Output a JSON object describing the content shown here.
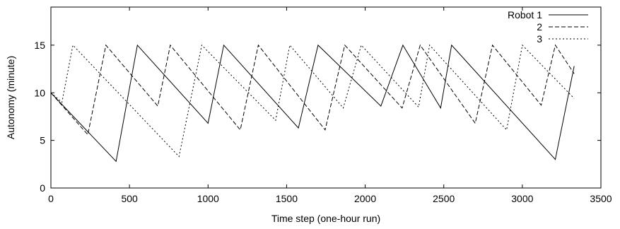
{
  "chart_data": {
    "type": "line",
    "title": "",
    "xlabel": "Time step (one-hour run)",
    "ylabel": "Autonomy (minute)",
    "xlim": [
      0,
      3500
    ],
    "ylim": [
      0,
      19
    ],
    "xticks": [
      0,
      500,
      1000,
      1500,
      2000,
      2500,
      3000,
      3500
    ],
    "yticks": [
      0,
      5,
      10,
      15
    ],
    "grid": false,
    "legend_position": "top-right",
    "series": [
      {
        "name": "Robot 1",
        "style": "solid",
        "x": [
          0,
          415,
          550,
          1000,
          1100,
          1575,
          1700,
          2100,
          2240,
          2480,
          2550,
          3210,
          3330
        ],
        "y": [
          10,
          2.8,
          15,
          6.8,
          15,
          6.3,
          15,
          8.6,
          15,
          8.4,
          15,
          3.0,
          12.8
        ]
      },
      {
        "name": "2",
        "style": "dashed",
        "x": [
          0,
          235,
          350,
          680,
          760,
          1205,
          1320,
          1745,
          1870,
          2235,
          2350,
          2700,
          2810,
          3120,
          3210,
          3330
        ],
        "y": [
          10,
          5.6,
          15,
          8.6,
          15,
          6.1,
          15,
          6.1,
          15,
          8.4,
          15,
          6.8,
          15,
          8.7,
          15,
          12.0
        ]
      },
      {
        "name": "3",
        "style": "dotted",
        "x": [
          0,
          70,
          140,
          815,
          960,
          1430,
          1520,
          1860,
          1975,
          2340,
          2410,
          2900,
          3000,
          3330
        ],
        "y": [
          10,
          9.0,
          15,
          3.3,
          15,
          7.1,
          15,
          8.4,
          15,
          8.5,
          15,
          6.1,
          15,
          9.4
        ]
      }
    ]
  }
}
